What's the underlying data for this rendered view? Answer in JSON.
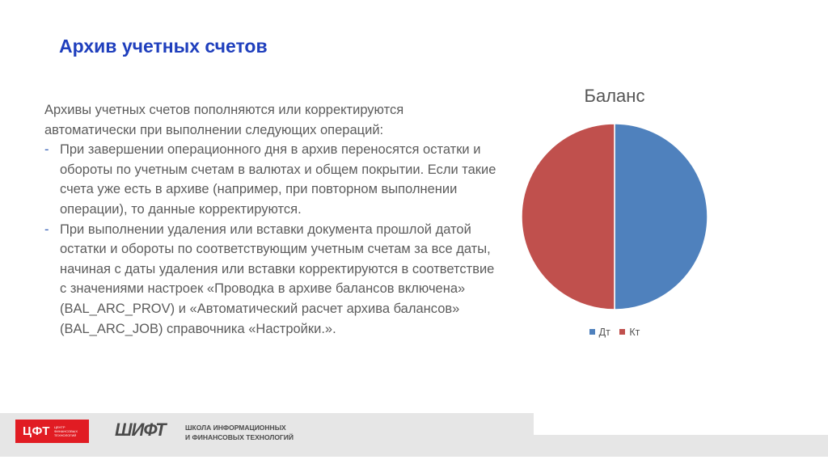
{
  "slide": {
    "title": "Архив учетных счетов",
    "intro": "Архивы учетных счетов пополняются или корректируются автоматически при выполнении следующих операций:",
    "bullets": [
      "При завершении операционного дня в архив переносятся остатки и обороты по учетным счетам в валютах и общем покрытии. Если такие счета уже есть в архиве (например, при повторном выполнении операции), то данные корректируются.",
      "При выполнении удаления или вставки документа прошлой датой остатки и обороты по соответствующим учетным счетам за все даты, начиная с даты удаления или вставки корректируются в соответствие с значениями настроек «Проводка в архиве балансов включена» (BAL_ARC_PROV) и «Автоматический расчет архива балансов» (BAL_ARC_JOB) справочника «Настройки.»."
    ],
    "bullet_marker": "-"
  },
  "chart_data": {
    "type": "pie",
    "title": "Баланс",
    "categories": [
      "Дт",
      "Кт"
    ],
    "values": [
      50,
      50
    ],
    "colors": [
      "#4f81bd",
      "#c0504d"
    ],
    "legend_position": "bottom"
  },
  "footer": {
    "cft_logo": "ЦФТ",
    "cft_sub": "ЦЕНТР ФИНАНСОВЫХ ТЕХНОЛОГИЙ",
    "shift_logo": "ШИФТ",
    "shift_line1": "ШКОЛА ИНФОРМАЦИОННЫХ",
    "shift_line2": "И ФИНАНСОВЫХ ТЕХНОЛОГИЙ"
  }
}
